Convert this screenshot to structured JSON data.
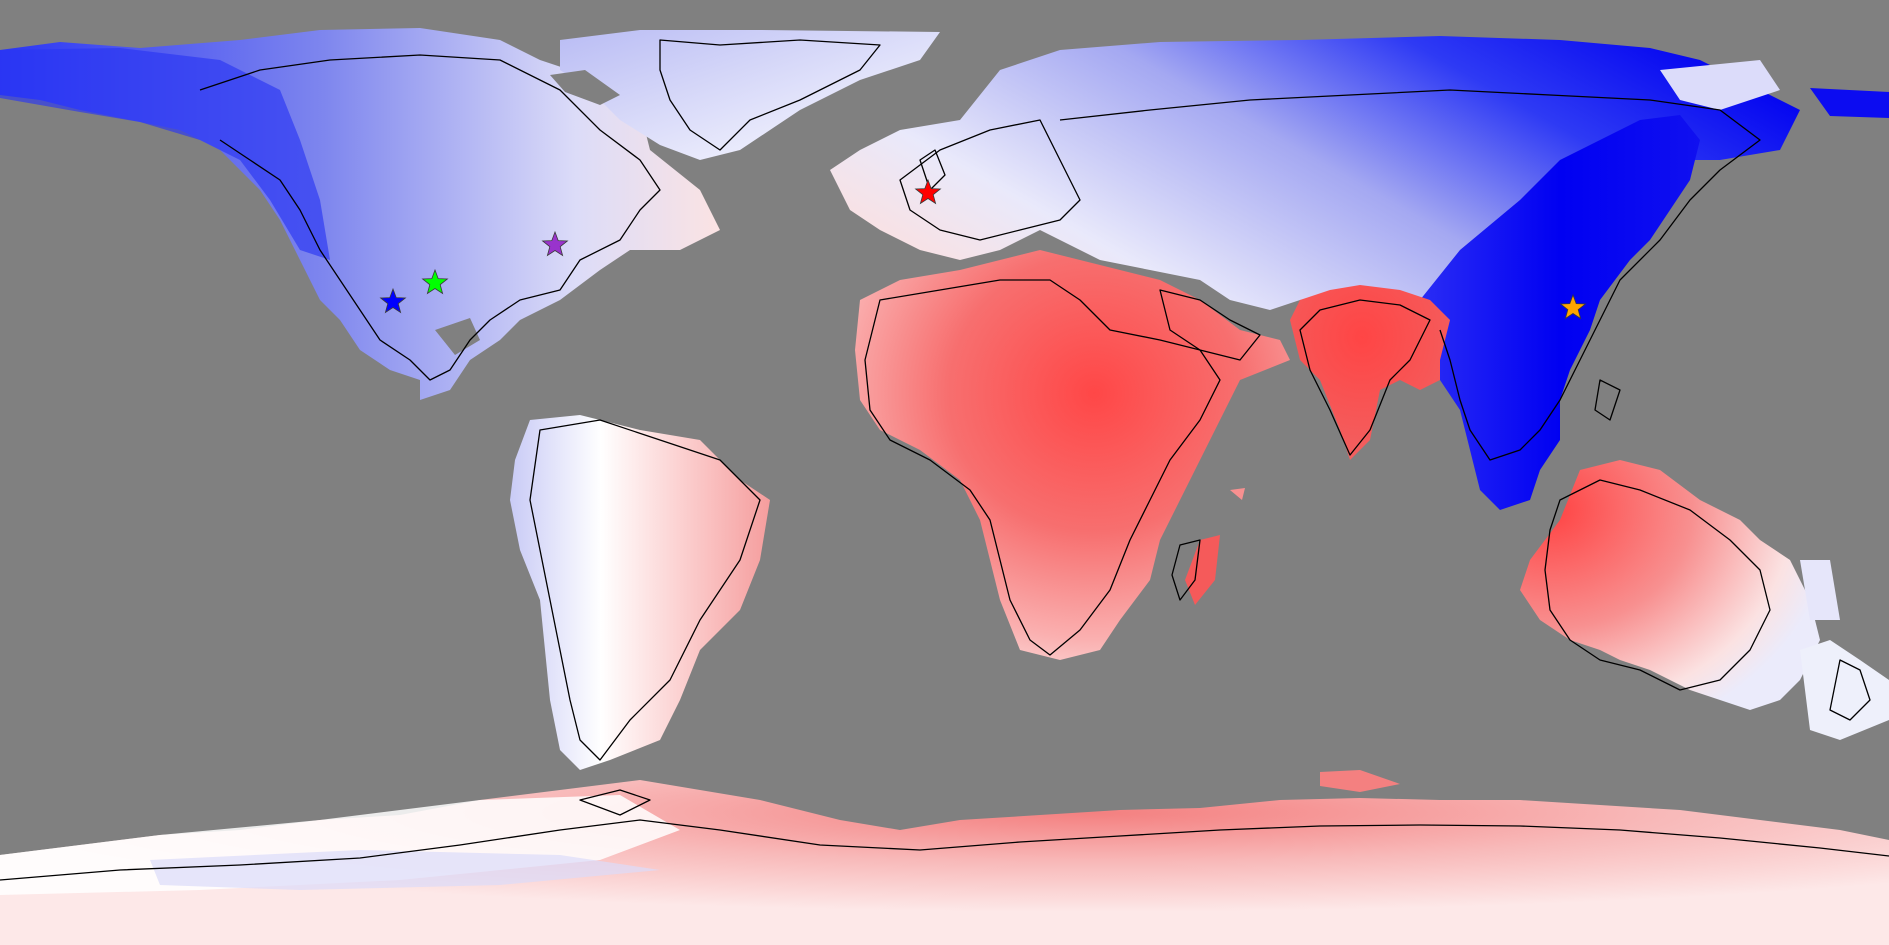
{
  "map": {
    "projection": "equirectangular",
    "ocean_color": "#808080",
    "diverging_scale": {
      "negative": "#0000ff",
      "neutral": "#ffffff",
      "positive": "#ff3b3b"
    },
    "regions": [
      {
        "name": "north-america",
        "polarity": "negative"
      },
      {
        "name": "greenland",
        "polarity": "negative"
      },
      {
        "name": "south-america",
        "polarity": "mixed"
      },
      {
        "name": "europe-north-asia",
        "polarity": "negative"
      },
      {
        "name": "east-asia",
        "polarity": "negative"
      },
      {
        "name": "africa-arabia",
        "polarity": "positive"
      },
      {
        "name": "india",
        "polarity": "positive"
      },
      {
        "name": "australia",
        "polarity": "positive"
      },
      {
        "name": "antarctica",
        "polarity": "positive"
      }
    ],
    "markers": [
      {
        "name": "marker-blue",
        "icon": "star-icon",
        "color": "#0000ff"
      },
      {
        "name": "marker-green",
        "icon": "star-icon",
        "color": "#00ff00"
      },
      {
        "name": "marker-purple",
        "icon": "star-icon",
        "color": "#9933cc"
      },
      {
        "name": "marker-red",
        "icon": "star-icon",
        "color": "#ff0000"
      },
      {
        "name": "marker-orange",
        "icon": "star-icon",
        "color": "#ffa500"
      }
    ]
  }
}
